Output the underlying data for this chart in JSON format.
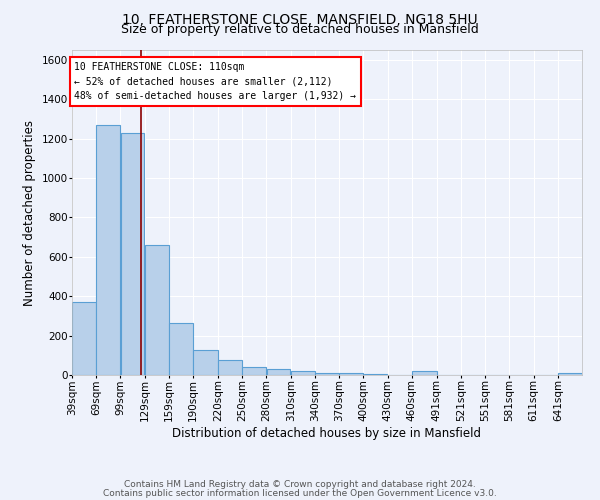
{
  "title_line1": "10, FEATHERSTONE CLOSE, MANSFIELD, NG18 5HU",
  "title_line2": "Size of property relative to detached houses in Mansfield",
  "xlabel": "Distribution of detached houses by size in Mansfield",
  "ylabel": "Number of detached properties",
  "footnote1": "Contains HM Land Registry data © Crown copyright and database right 2024.",
  "footnote2": "Contains public sector information licensed under the Open Government Licence v3.0.",
  "annotation_line1": "10 FEATHERSTONE CLOSE: 110sqm",
  "annotation_line2": "← 52% of detached houses are smaller (2,112)",
  "annotation_line3": "48% of semi-detached houses are larger (1,932) →",
  "bar_color": "#b8d0ea",
  "bar_edge_color": "#5a9fd4",
  "red_line_x": 110,
  "categories": [
    "39sqm",
    "69sqm",
    "99sqm",
    "129sqm",
    "159sqm",
    "190sqm",
    "220sqm",
    "250sqm",
    "280sqm",
    "310sqm",
    "340sqm",
    "370sqm",
    "400sqm",
    "430sqm",
    "460sqm",
    "491sqm",
    "521sqm",
    "551sqm",
    "581sqm",
    "611sqm",
    "641sqm"
  ],
  "bin_edges": [
    24,
    54,
    84,
    114,
    144,
    174,
    205,
    235,
    265,
    295,
    325,
    355,
    385,
    415,
    445,
    476,
    506,
    536,
    566,
    596,
    626,
    656
  ],
  "values": [
    370,
    1270,
    1230,
    660,
    265,
    125,
    75,
    40,
    28,
    18,
    10,
    8,
    5,
    0,
    18,
    0,
    0,
    0,
    0,
    0,
    8
  ],
  "ylim": [
    0,
    1650
  ],
  "yticks": [
    0,
    200,
    400,
    600,
    800,
    1000,
    1200,
    1400,
    1600
  ],
  "background_color": "#eef2fb",
  "grid_color": "#ffffff",
  "title_fontsize": 10,
  "subtitle_fontsize": 9,
  "axis_label_fontsize": 8.5,
  "tick_fontsize": 7.5,
  "footnote_fontsize": 6.5
}
